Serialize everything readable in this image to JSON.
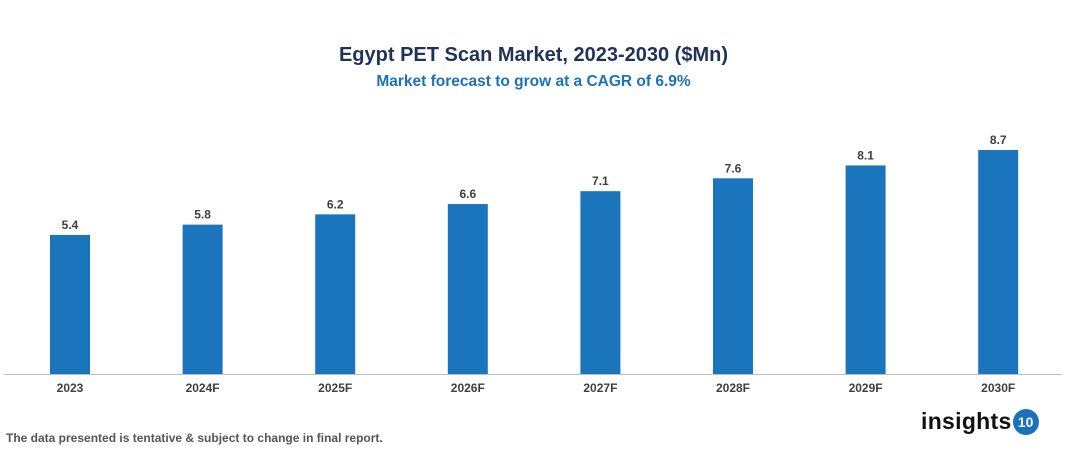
{
  "chart_data": {
    "type": "bar",
    "title": "Egypt PET Scan Market, 2023-2030 ($Mn)",
    "subtitle": "Market forecast to grow at a CAGR of 6.9%",
    "categories": [
      "2023",
      "2024F",
      "2025F",
      "2026F",
      "2027F",
      "2028F",
      "2029F",
      "2030F"
    ],
    "values": [
      5.4,
      5.8,
      6.2,
      6.6,
      7.1,
      7.6,
      8.1,
      8.7
    ],
    "xlabel": "",
    "ylabel": "",
    "ylim": [
      0,
      9
    ],
    "grid": false,
    "data_labels": true,
    "bar_color": "#1a75bc"
  },
  "footer": {
    "note": "The data presented is tentative & subject to change in final report.",
    "logo_text": "insights",
    "logo_badge": "10"
  }
}
